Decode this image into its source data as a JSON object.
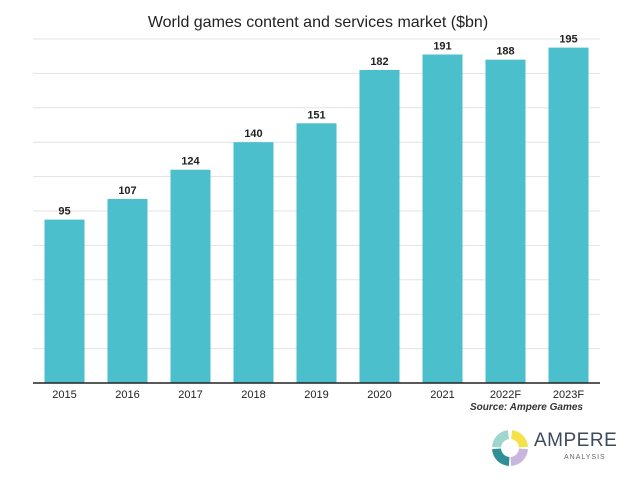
{
  "chart_data": {
    "type": "bar",
    "title": "World games content and services market ($bn)",
    "xlabel": "",
    "ylabel": "",
    "categories": [
      "2015",
      "2016",
      "2017",
      "2018",
      "2019",
      "2020",
      "2021",
      "2022F",
      "2023F"
    ],
    "values": [
      95,
      107,
      124,
      140,
      151,
      182,
      191,
      188,
      195
    ],
    "ylim": [
      0,
      200
    ],
    "grid": true,
    "legend": "none",
    "bar_color": "#4bbfcc",
    "source": "Source: Ampere Games"
  },
  "branding": {
    "name": "AMPERE",
    "sub": "ANALYSIS",
    "colors": [
      "#f3e24a",
      "#c9b6dd",
      "#2f8f94",
      "#9fd6cf"
    ]
  }
}
